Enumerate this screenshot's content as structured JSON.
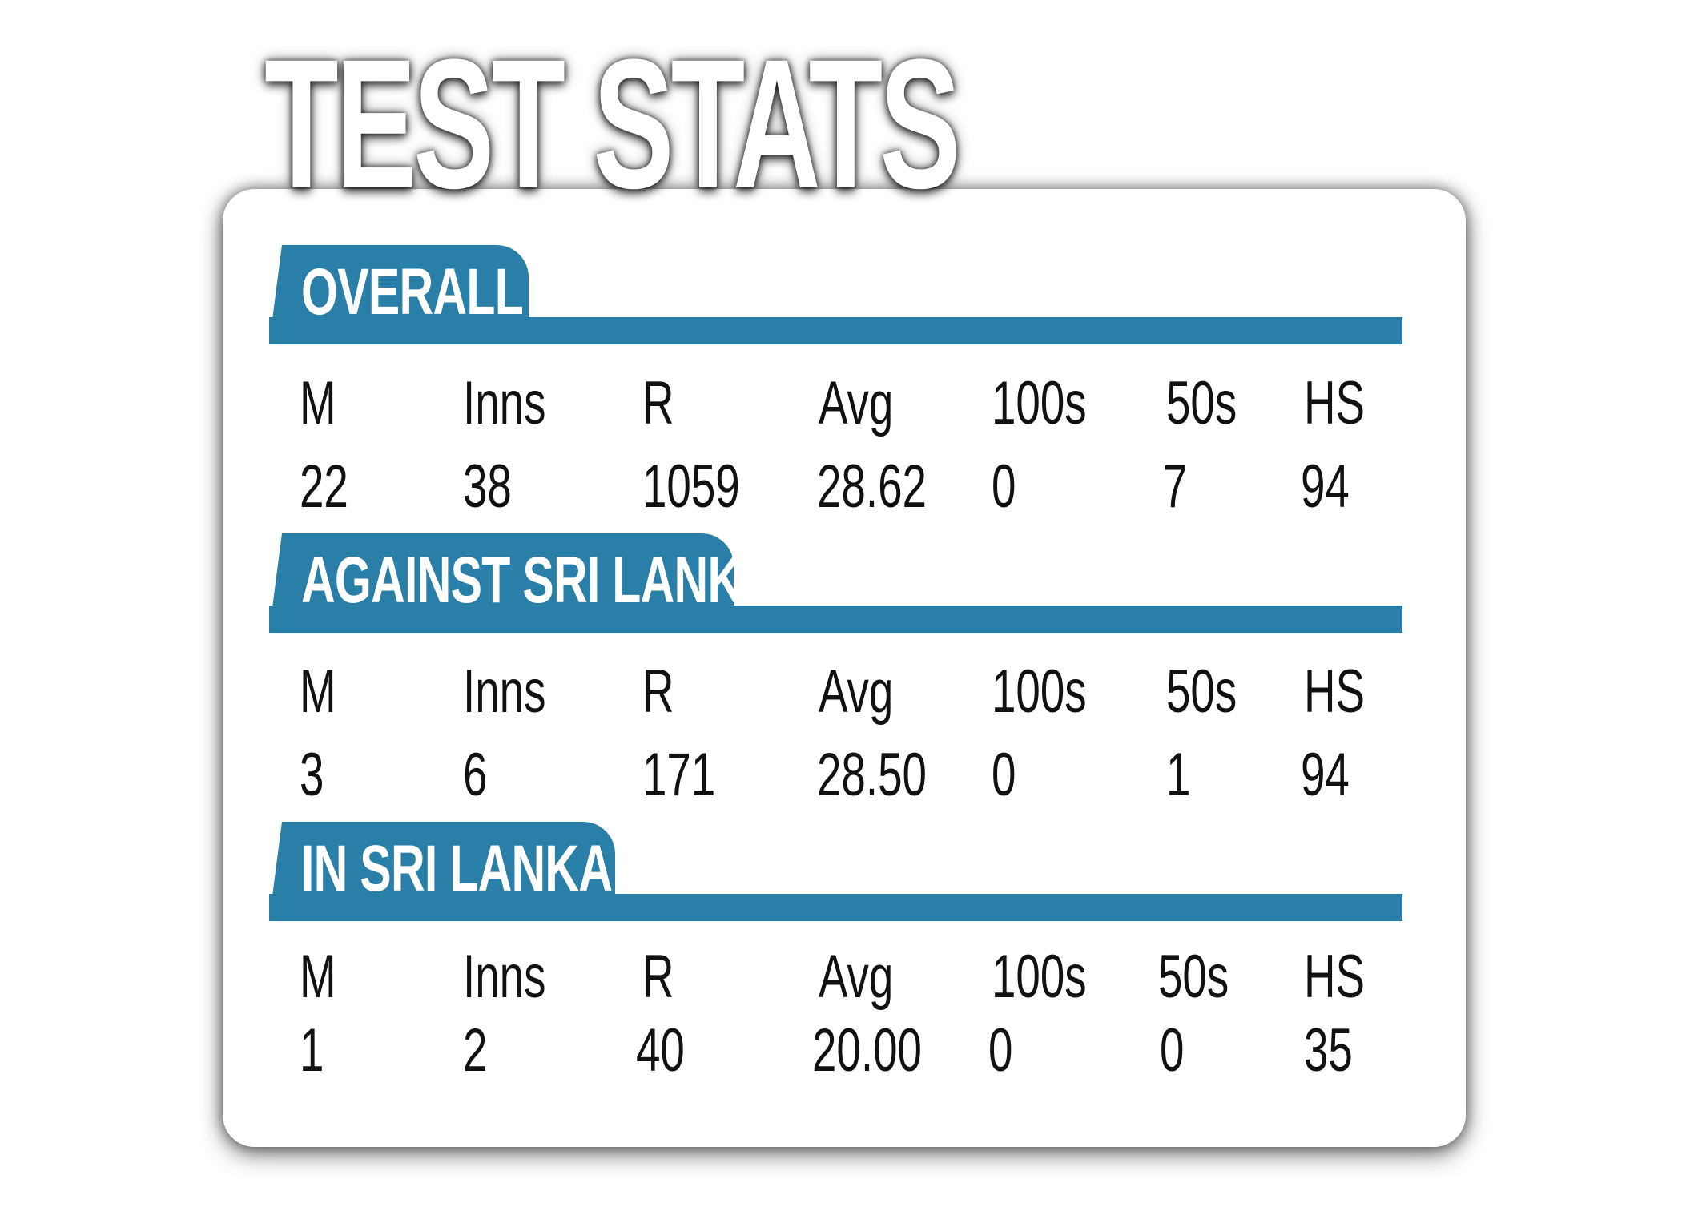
{
  "title": "TEST STATS",
  "accent_color": "#2a7fa9",
  "headers": [
    "M",
    "Inns",
    "R",
    "Avg",
    "100s",
    "50s",
    "HS"
  ],
  "sections": [
    {
      "label": "OVERALL",
      "values": [
        "22",
        "38",
        "1059",
        "28.62",
        "0",
        "7",
        "94"
      ]
    },
    {
      "label": "AGAINST SRI LANKA",
      "values": [
        "3",
        "6",
        "171",
        "28.50",
        "0",
        "1",
        "94"
      ]
    },
    {
      "label": "IN SRI LANKA",
      "values": [
        "1",
        "2",
        "40",
        "20.00",
        "0",
        "0",
        "35"
      ]
    }
  ]
}
